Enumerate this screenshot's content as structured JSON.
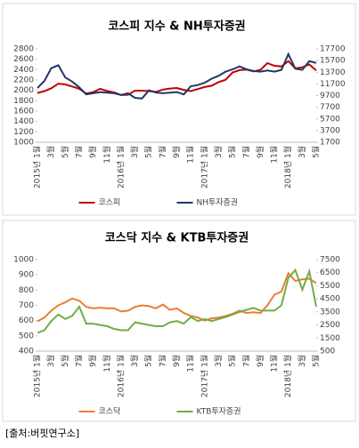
{
  "chart_data": [
    {
      "type": "line",
      "title": "코스피 지수 & NH투자증권",
      "categories": [
        "2015년 1월",
        null,
        "3월",
        null,
        "5월",
        null,
        "7월",
        null,
        "9월",
        null,
        "11월",
        null,
        "2016년 1월",
        null,
        "3월",
        null,
        "5월",
        null,
        "7월",
        null,
        "9월",
        null,
        "11월",
        null,
        "2017년 1월",
        null,
        "3월",
        null,
        "5월",
        null,
        "7월",
        null,
        "9월",
        null,
        "11월",
        null,
        "2018년 1월",
        null,
        "3월",
        null,
        "5월"
      ],
      "series": [
        {
          "name": "코스피",
          "color": "#c00000",
          "axis": "y",
          "values": [
            1950,
            1985,
            2040,
            2130,
            2115,
            2075,
            2030,
            1940,
            1965,
            2030,
            1990,
            1960,
            1910,
            1915,
            1995,
            1995,
            1985,
            1970,
            2015,
            2035,
            2045,
            2010,
            1985,
            2025,
            2065,
            2090,
            2160,
            2205,
            2345,
            2390,
            2400,
            2365,
            2395,
            2525,
            2475,
            2460,
            2565,
            2425,
            2445,
            2500,
            2385
          ]
        },
        {
          "name": "NH투자증권",
          "color": "#1f3864",
          "axis": "y2",
          "values": [
            11000,
            12200,
            14400,
            14900,
            12800,
            12100,
            11100,
            9900,
            10100,
            10300,
            10200,
            10100,
            9800,
            10100,
            9300,
            9200,
            10600,
            10200,
            10100,
            10200,
            10300,
            9900,
            11300,
            11500,
            11900,
            12600,
            13100,
            13800,
            14200,
            14700,
            14200,
            13900,
            13800,
            14000,
            13800,
            14100,
            16800,
            14300,
            14100,
            15600,
            15300
          ]
        }
      ],
      "ylim": [
        1000,
        2800
      ],
      "yticks": [
        1000,
        1200,
        1400,
        1600,
        1800,
        2000,
        2200,
        2400,
        2600,
        2800
      ],
      "y2lim": [
        1700,
        17700
      ],
      "y2ticks": [
        1700,
        3700,
        5700,
        7700,
        9700,
        11700,
        13700,
        15700,
        17700
      ],
      "legend": "bottom"
    },
    {
      "type": "line",
      "title": "코스닥 지수 & KTB투자증권",
      "categories": [
        "2015년 1월",
        null,
        "3월",
        null,
        "5월",
        null,
        "7월",
        null,
        "9월",
        null,
        "11월",
        null,
        "2016년 1월",
        null,
        "3월",
        null,
        "5월",
        null,
        "7월",
        null,
        "9월",
        null,
        "11월",
        null,
        "2017년 1월",
        null,
        "3월",
        null,
        "5월",
        null,
        "7월",
        null,
        "9월",
        null,
        "11월",
        null,
        "2018년 1월",
        null,
        "3월",
        null,
        "5월"
      ],
      "series": [
        {
          "name": "코스닥",
          "color": "#ed7d31",
          "axis": "y",
          "values": [
            595,
            620,
            665,
            700,
            720,
            745,
            730,
            690,
            680,
            685,
            680,
            680,
            660,
            665,
            690,
            700,
            695,
            680,
            705,
            670,
            680,
            650,
            630,
            620,
            600,
            615,
            620,
            630,
            645,
            665,
            650,
            655,
            650,
            700,
            770,
            790,
            910,
            860,
            870,
            875,
            845
          ]
        },
        {
          "name": "KTB투자증권",
          "color": "#70ad47",
          "axis": "y2",
          "values": [
            1900,
            2100,
            2800,
            3300,
            2950,
            3200,
            3900,
            2600,
            2600,
            2500,
            2400,
            2200,
            2100,
            2100,
            2700,
            2600,
            2500,
            2400,
            2400,
            2700,
            2800,
            2600,
            3100,
            2800,
            2950,
            2800,
            2950,
            3100,
            3300,
            3500,
            3650,
            3800,
            3600,
            3600,
            3600,
            4000,
            6100,
            6700,
            5200,
            6600,
            3900
          ]
        }
      ],
      "ylim": [
        400,
        1000
      ],
      "yticks": [
        400,
        500,
        600,
        700,
        800,
        900,
        1000
      ],
      "y2lim": [
        500,
        7500
      ],
      "y2ticks": [
        500,
        1500,
        2500,
        3500,
        4500,
        5500,
        6500,
        7500
      ],
      "legend": "bottom"
    }
  ],
  "source": "[출처:버핏연구소]"
}
